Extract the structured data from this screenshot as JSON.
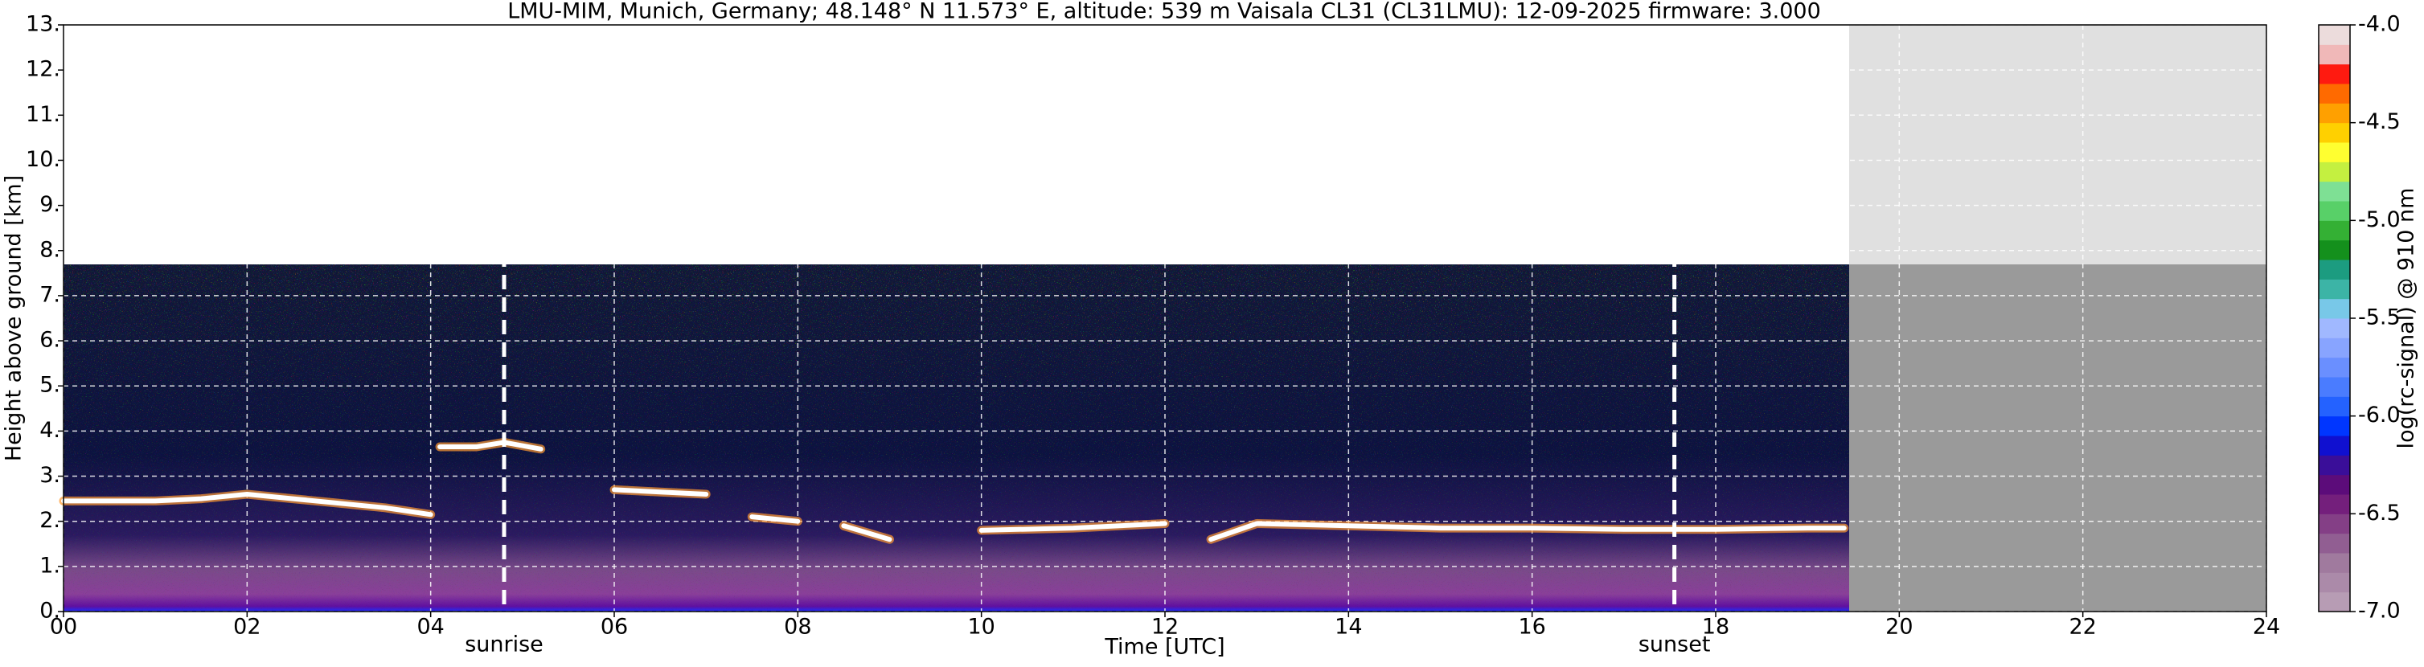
{
  "chart_data": {
    "type": "line",
    "title": "LMU-MIM, Munich, Germany; 48.148° N 11.573° E, altitude: 539 m    Vaisala CL31 (CL31LMU): 12-09-2025    firmware: 3.000",
    "x_label": "Time [UTC]",
    "y_label": "Height above ground [km]",
    "xlim": [
      0,
      24
    ],
    "xticks": [
      {
        "value": 0,
        "label": "00"
      },
      {
        "value": 2,
        "label": "02"
      },
      {
        "value": 4,
        "label": "04"
      },
      {
        "value": 6,
        "label": "06"
      },
      {
        "value": 8,
        "label": "08"
      },
      10,
      12,
      14,
      16,
      18,
      20,
      22,
      24
    ],
    "ylim": [
      0,
      13
    ],
    "yticks": [
      {
        "value": 0,
        "label": "0."
      },
      {
        "value": 1,
        "label": "1."
      },
      {
        "value": 2,
        "label": "2."
      },
      {
        "value": 3,
        "label": "3."
      },
      {
        "value": 4,
        "label": "4."
      },
      {
        "value": 5,
        "label": "5."
      },
      {
        "value": 6,
        "label": "6."
      },
      {
        "value": 7,
        "label": "7."
      },
      {
        "value": 8,
        "label": "8."
      },
      {
        "value": 9,
        "label": "9."
      },
      {
        "value": 10,
        "label": "10."
      },
      {
        "value": 11,
        "label": "11."
      },
      {
        "value": 12,
        "label": "12."
      },
      {
        "value": 13,
        "label": "13."
      }
    ],
    "grid": true,
    "series": [
      {
        "color": "#ffffff",
        "x": [
          0,
          1,
          1.5,
          2,
          2.5,
          3,
          3.5,
          4,
          4.05,
          4.1,
          4.5,
          4.8,
          5.2,
          5.6,
          6,
          6.5,
          7,
          7.2,
          7.5,
          8,
          8.2,
          8.5,
          9,
          9.5,
          10,
          11,
          12,
          12.4,
          12.5,
          13,
          14,
          15,
          16,
          17,
          18,
          19,
          19.4
        ],
        "values": [
          2.45,
          2.45,
          2.5,
          2.6,
          2.5,
          2.4,
          2.3,
          2.15,
          null,
          3.65,
          3.65,
          3.75,
          3.6,
          null,
          2.7,
          2.65,
          2.6,
          null,
          2.1,
          2.0,
          null,
          1.9,
          1.6,
          null,
          1.8,
          1.85,
          1.95,
          null,
          1.6,
          1.95,
          1.9,
          1.85,
          1.85,
          1.82,
          1.82,
          1.85,
          1.85
        ]
      }
    ],
    "annotations": [
      {
        "x": 4.8,
        "label": "sunrise"
      },
      {
        "x": 17.55,
        "label": "sunset"
      }
    ],
    "colorbar": {
      "label": "log(rc-signal) @ 910 nm",
      "lim": [
        -7,
        -4
      ],
      "ticks": [
        {
          "value": -7,
          "label": "-7.0"
        },
        {
          "value": -6.5,
          "label": "-6.5"
        },
        {
          "value": -6,
          "label": "-6.0"
        },
        {
          "value": -5.5,
          "label": "-5.5"
        },
        {
          "value": -5,
          "label": "-5.0"
        },
        {
          "value": -4.5,
          "label": "-4.5"
        },
        {
          "value": -4,
          "label": "-4.0"
        }
      ],
      "colors": [
        "#b79cb4",
        "#ab8aa9",
        "#a07a9e",
        "#915e92",
        "#843f86",
        "#741f7c",
        "#5c0c7a",
        "#3a0e99",
        "#1010d0",
        "#0036ff",
        "#2462ff",
        "#4a7cff",
        "#6a8fff",
        "#88a4ff",
        "#a0b8ff",
        "#78c8e8",
        "#3cb4a6",
        "#1c9c80",
        "#14901c",
        "#34b034",
        "#58d068",
        "#7ee094",
        "#c4f040",
        "#ffff30",
        "#ffd000",
        "#ffa000",
        "#ff6a00",
        "#ff1a10",
        "#f0b8b8",
        "#ecdcdc"
      ]
    }
  }
}
